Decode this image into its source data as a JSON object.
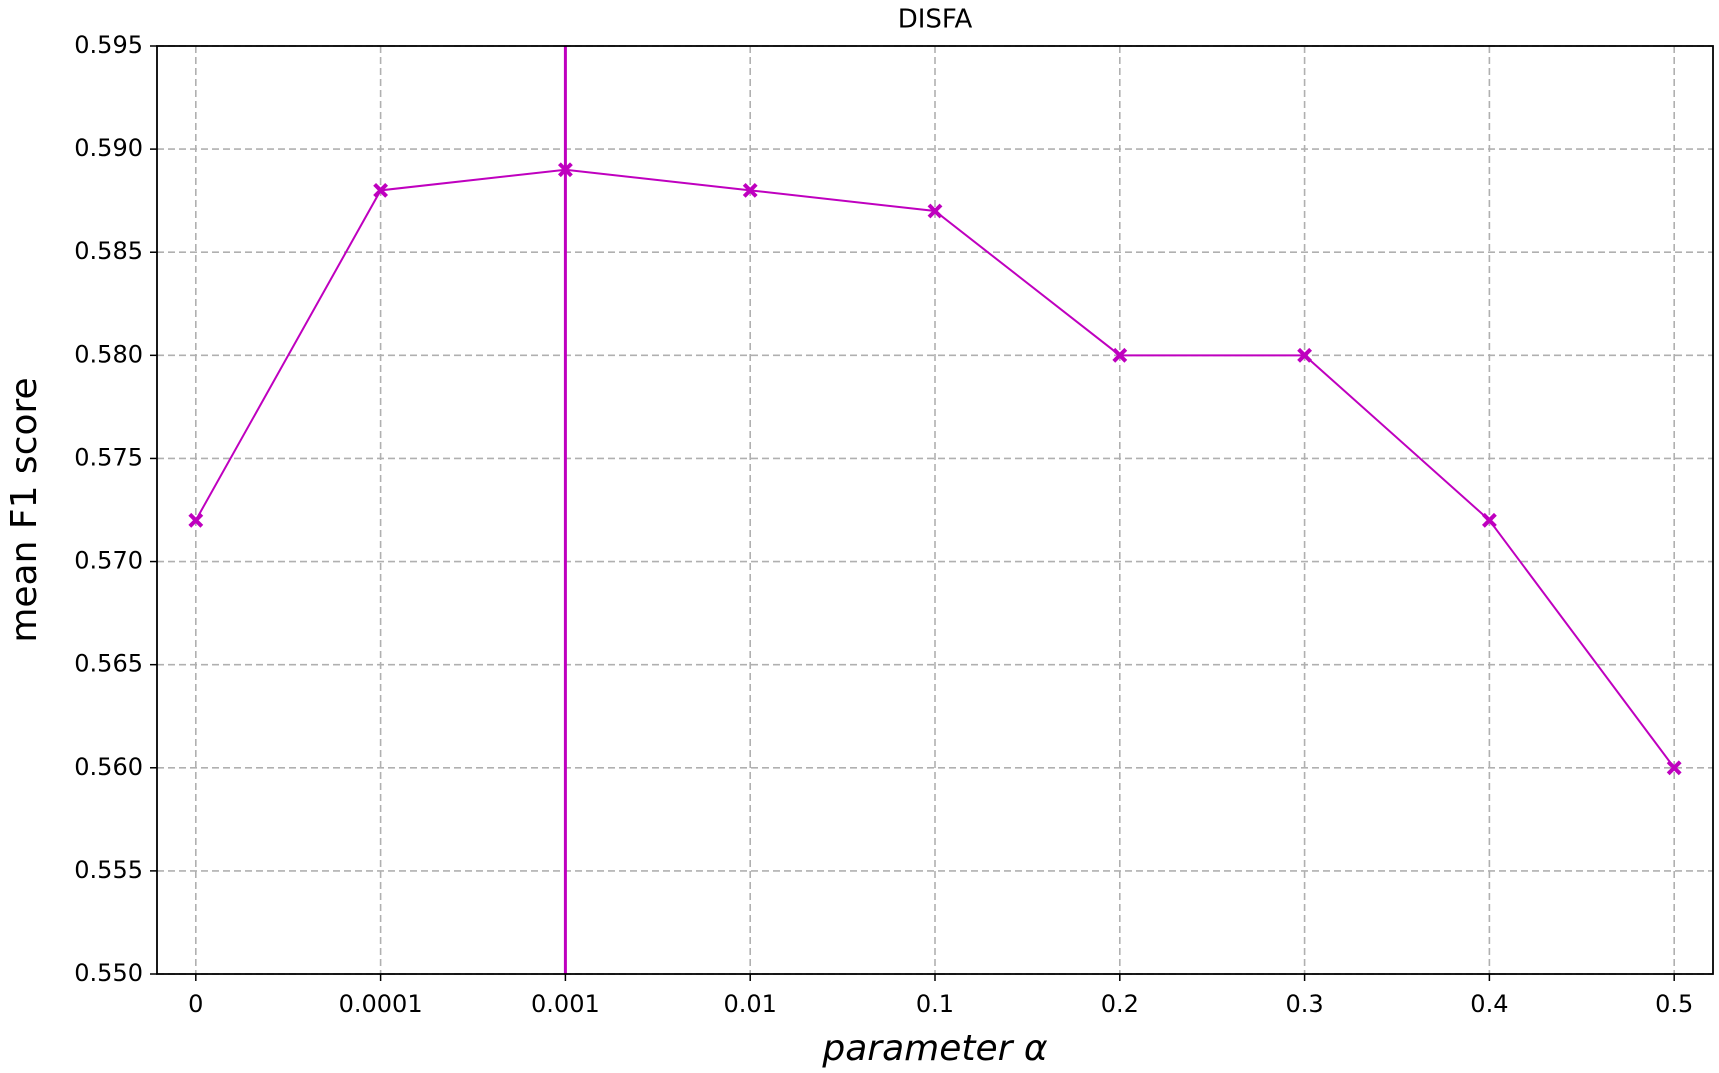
{
  "chart_data": {
    "type": "line",
    "title": "DISFA",
    "x_label": "parameter α",
    "y_label": "mean F1 score",
    "categories": [
      "0",
      "0.0001",
      "0.001",
      "0.01",
      "0.1",
      "0.2",
      "0.3",
      "0.4",
      "0.5"
    ],
    "values": [
      0.572,
      0.588,
      0.589,
      0.588,
      0.587,
      0.58,
      0.58,
      0.572,
      0.56
    ],
    "color": "#bf00bf",
    "marker": "x",
    "vline": "0.001",
    "ylim": [
      0.55,
      0.595
    ],
    "yticks": [
      {
        "value": 0.55,
        "label": "0.550"
      },
      0.555,
      {
        "value": 0.56,
        "label": "0.560"
      },
      0.565,
      {
        "value": 0.57,
        "label": "0.570"
      },
      0.575,
      {
        "value": 0.58,
        "label": "0.580"
      },
      0.585,
      {
        "value": 0.59,
        "label": "0.590"
      },
      0.595
    ],
    "grid": true
  }
}
